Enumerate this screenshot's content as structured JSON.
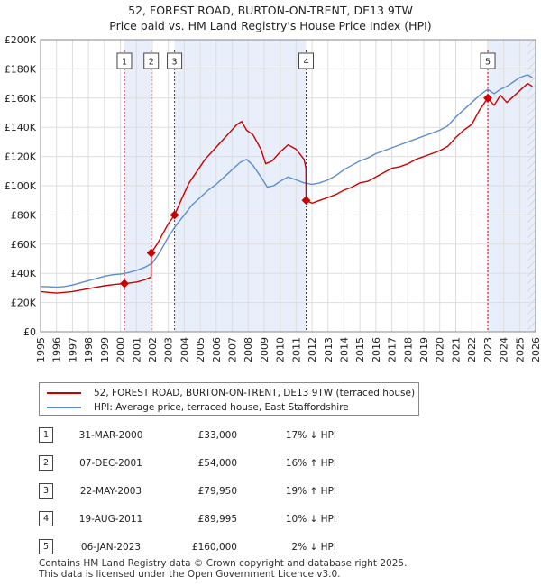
{
  "chart_data": {
    "type": "line",
    "title": "52, FOREST ROAD, BURTON-ON-TRENT, DE13 9TW",
    "subtitle": "Price paid vs. HM Land Registry's House Price Index (HPI)",
    "ylim": [
      0,
      200000
    ],
    "y_ticks": [
      0,
      20000,
      40000,
      60000,
      80000,
      100000,
      120000,
      140000,
      160000,
      180000,
      200000
    ],
    "y_tick_labels": [
      "£0",
      "£20K",
      "£40K",
      "£60K",
      "£80K",
      "£100K",
      "£120K",
      "£140K",
      "£160K",
      "£180K",
      "£200K"
    ],
    "xlim": [
      1995,
      2026
    ],
    "x_ticks": [
      1995,
      1996,
      1997,
      1998,
      1999,
      2000,
      2001,
      2002,
      2003,
      2004,
      2005,
      2006,
      2007,
      2008,
      2009,
      2010,
      2011,
      2012,
      2013,
      2014,
      2015,
      2016,
      2017,
      2018,
      2019,
      2020,
      2021,
      2022,
      2023,
      2024,
      2025,
      2026
    ],
    "x_tick_labels": [
      "1995",
      "1996",
      "1997",
      "1998",
      "1999",
      "2000",
      "2001",
      "2002",
      "2003",
      "2004",
      "2005",
      "2006",
      "2007",
      "2008",
      "2009",
      "2010",
      "2011",
      "2012",
      "2013",
      "2014",
      "2015",
      "2016",
      "2017",
      "2018",
      "2019",
      "2020",
      "2021",
      "2022",
      "2023",
      "2024",
      "2025",
      "2026"
    ],
    "shaded_periods": [
      [
        2000.25,
        2001.93
      ],
      [
        2003.39,
        2011.63
      ],
      [
        2023.01,
        2026
      ]
    ],
    "projection_start": 2025.5,
    "series": [
      {
        "name": "52, FOREST ROAD, BURTON-ON-TRENT, DE13 9TW (terraced house)",
        "color": "#cc0000",
        "points": [
          [
            1995.0,
            27500
          ],
          [
            1995.5,
            27000
          ],
          [
            1996.0,
            26500
          ],
          [
            1996.5,
            27000
          ],
          [
            1997.0,
            27500
          ],
          [
            1997.5,
            28500
          ],
          [
            1998.0,
            29500
          ],
          [
            1998.5,
            30500
          ],
          [
            1999.0,
            31500
          ],
          [
            1999.5,
            32200
          ],
          [
            2000.25,
            33000
          ],
          [
            2000.5,
            33300
          ],
          [
            2001.0,
            34000
          ],
          [
            2001.5,
            35500
          ],
          [
            2001.92,
            37500
          ],
          [
            2001.93,
            54000
          ],
          [
            2002.3,
            60000
          ],
          [
            2002.7,
            68000
          ],
          [
            2003.0,
            74000
          ],
          [
            2003.39,
            79950
          ],
          [
            2003.8,
            90000
          ],
          [
            2004.3,
            102000
          ],
          [
            2004.8,
            110000
          ],
          [
            2005.3,
            118000
          ],
          [
            2005.8,
            124000
          ],
          [
            2006.3,
            130000
          ],
          [
            2006.8,
            136000
          ],
          [
            2007.3,
            142000
          ],
          [
            2007.6,
            144000
          ],
          [
            2007.9,
            138000
          ],
          [
            2008.3,
            135000
          ],
          [
            2008.8,
            125000
          ],
          [
            2009.1,
            115000
          ],
          [
            2009.5,
            117000
          ],
          [
            2010.0,
            123000
          ],
          [
            2010.5,
            128000
          ],
          [
            2011.0,
            125000
          ],
          [
            2011.5,
            118000
          ],
          [
            2011.62,
            112000
          ],
          [
            2011.63,
            89995
          ],
          [
            2012.0,
            88000
          ],
          [
            2012.5,
            90000
          ],
          [
            2013.0,
            92000
          ],
          [
            2013.5,
            94000
          ],
          [
            2014.0,
            97000
          ],
          [
            2014.5,
            99000
          ],
          [
            2015.0,
            102000
          ],
          [
            2015.5,
            103000
          ],
          [
            2016.0,
            106000
          ],
          [
            2016.5,
            109000
          ],
          [
            2017.0,
            112000
          ],
          [
            2017.5,
            113000
          ],
          [
            2018.0,
            115000
          ],
          [
            2018.5,
            118000
          ],
          [
            2019.0,
            120000
          ],
          [
            2019.5,
            122000
          ],
          [
            2020.0,
            124000
          ],
          [
            2020.5,
            127000
          ],
          [
            2021.0,
            133000
          ],
          [
            2021.5,
            138000
          ],
          [
            2022.0,
            142000
          ],
          [
            2022.5,
            152000
          ],
          [
            2023.01,
            160000
          ],
          [
            2023.4,
            155000
          ],
          [
            2023.8,
            162000
          ],
          [
            2024.2,
            157000
          ],
          [
            2024.6,
            161000
          ],
          [
            2025.0,
            165000
          ],
          [
            2025.5,
            170000
          ],
          [
            2025.8,
            168000
          ]
        ]
      },
      {
        "name": "HPI: Average price, terraced house, East Staffordshire",
        "color": "#5b8ed0",
        "points": [
          [
            1995.0,
            31000
          ],
          [
            1995.5,
            30800
          ],
          [
            1996.0,
            30500
          ],
          [
            1996.5,
            31000
          ],
          [
            1997.0,
            32000
          ],
          [
            1997.5,
            33500
          ],
          [
            1998.0,
            35000
          ],
          [
            1998.5,
            36500
          ],
          [
            1999.0,
            38000
          ],
          [
            1999.5,
            39000
          ],
          [
            2000.0,
            39500
          ],
          [
            2000.5,
            40500
          ],
          [
            2001.0,
            42000
          ],
          [
            2001.5,
            44000
          ],
          [
            2002.0,
            47000
          ],
          [
            2002.5,
            55000
          ],
          [
            2003.0,
            65000
          ],
          [
            2003.5,
            73000
          ],
          [
            2004.0,
            80000
          ],
          [
            2004.5,
            87000
          ],
          [
            2005.0,
            92000
          ],
          [
            2005.5,
            97000
          ],
          [
            2006.0,
            101000
          ],
          [
            2006.5,
            106000
          ],
          [
            2007.0,
            111000
          ],
          [
            2007.5,
            116000
          ],
          [
            2007.9,
            118000
          ],
          [
            2008.3,
            114000
          ],
          [
            2008.8,
            106000
          ],
          [
            2009.2,
            99000
          ],
          [
            2009.6,
            100000
          ],
          [
            2010.0,
            103000
          ],
          [
            2010.5,
            106000
          ],
          [
            2011.0,
            104000
          ],
          [
            2011.5,
            102000
          ],
          [
            2012.0,
            101000
          ],
          [
            2012.5,
            102000
          ],
          [
            2013.0,
            104000
          ],
          [
            2013.5,
            107000
          ],
          [
            2014.0,
            111000
          ],
          [
            2014.5,
            114000
          ],
          [
            2015.0,
            117000
          ],
          [
            2015.5,
            119000
          ],
          [
            2016.0,
            122000
          ],
          [
            2016.5,
            124000
          ],
          [
            2017.0,
            126000
          ],
          [
            2017.5,
            128000
          ],
          [
            2018.0,
            130000
          ],
          [
            2018.5,
            132000
          ],
          [
            2019.0,
            134000
          ],
          [
            2019.5,
            136000
          ],
          [
            2020.0,
            138000
          ],
          [
            2020.5,
            141000
          ],
          [
            2021.0,
            147000
          ],
          [
            2021.5,
            152000
          ],
          [
            2022.0,
            157000
          ],
          [
            2022.5,
            162000
          ],
          [
            2023.0,
            166000
          ],
          [
            2023.4,
            163000
          ],
          [
            2023.8,
            166000
          ],
          [
            2024.2,
            168000
          ],
          [
            2024.6,
            171000
          ],
          [
            2025.0,
            174000
          ],
          [
            2025.5,
            176000
          ],
          [
            2025.8,
            174000
          ]
        ]
      }
    ],
    "sales": [
      {
        "label": "1",
        "x": 2000.25,
        "price": 33000
      },
      {
        "label": "2",
        "x": 2001.93,
        "price": 54000
      },
      {
        "label": "3",
        "x": 2003.39,
        "price": 79950
      },
      {
        "label": "4",
        "x": 2011.63,
        "price": 89995
      },
      {
        "label": "5",
        "x": 2023.01,
        "price": 160000
      }
    ]
  },
  "colors": {
    "property": "#cc0000",
    "hpi": "#5b8ed0",
    "shading": "#e8effb",
    "grid": "#dddddd",
    "marker_line": "#cc0000"
  },
  "legend": {
    "property_label": "52, FOREST ROAD, BURTON-ON-TRENT, DE13 9TW (terraced house)",
    "hpi_label": "HPI: Average price, terraced house, East Staffordshire"
  },
  "sales_table": [
    {
      "num": "1",
      "date": "31-MAR-2000",
      "price": "£33,000",
      "hpi": "17% ↓ HPI"
    },
    {
      "num": "2",
      "date": "07-DEC-2001",
      "price": "£54,000",
      "hpi": "16% ↑ HPI"
    },
    {
      "num": "3",
      "date": "22-MAY-2003",
      "price": "£79,950",
      "hpi": "19% ↑ HPI"
    },
    {
      "num": "4",
      "date": "19-AUG-2011",
      "price": "£89,995",
      "hpi": "10% ↓ HPI"
    },
    {
      "num": "5",
      "date": "06-JAN-2023",
      "price": "£160,000",
      "hpi": "2% ↓ HPI"
    }
  ],
  "footer": {
    "line1": "Contains HM Land Registry data © Crown copyright and database right 2025.",
    "line2": "This data is licensed under the Open Government Licence v3.0."
  }
}
